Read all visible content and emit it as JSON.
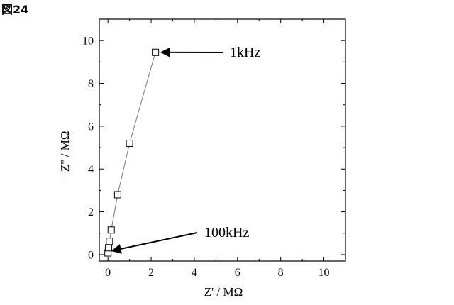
{
  "figure_label": "図24",
  "chart_data": {
    "type": "scatter",
    "title": "",
    "xlabel": "Z' / MΩ",
    "ylabel": "−Z'' / MΩ",
    "xlim": [
      -0.4,
      11
    ],
    "ylim": [
      -0.3,
      11
    ],
    "xticks": [
      0,
      2,
      4,
      6,
      8,
      10
    ],
    "yticks": [
      0,
      2,
      4,
      6,
      8,
      10
    ],
    "xtick_labels": [
      "0",
      "2",
      "4",
      "6",
      "8",
      "10"
    ],
    "ytick_labels": [
      "0",
      "2",
      "4",
      "6",
      "8",
      "10"
    ],
    "grid": false,
    "series": [
      {
        "marker": "open-square",
        "line": "solid-gray",
        "x": [
          0.0,
          0.03,
          0.07,
          0.15,
          0.45,
          1.0,
          2.2
        ],
        "y": [
          0.08,
          0.32,
          0.62,
          1.15,
          2.8,
          5.2,
          9.45
        ]
      }
    ],
    "annotations": [
      {
        "text": "1kHz",
        "arrow_to": [
          2.2,
          9.45
        ]
      },
      {
        "text": "100kHz",
        "arrow_to": [
          0.0,
          0.08
        ]
      }
    ]
  }
}
